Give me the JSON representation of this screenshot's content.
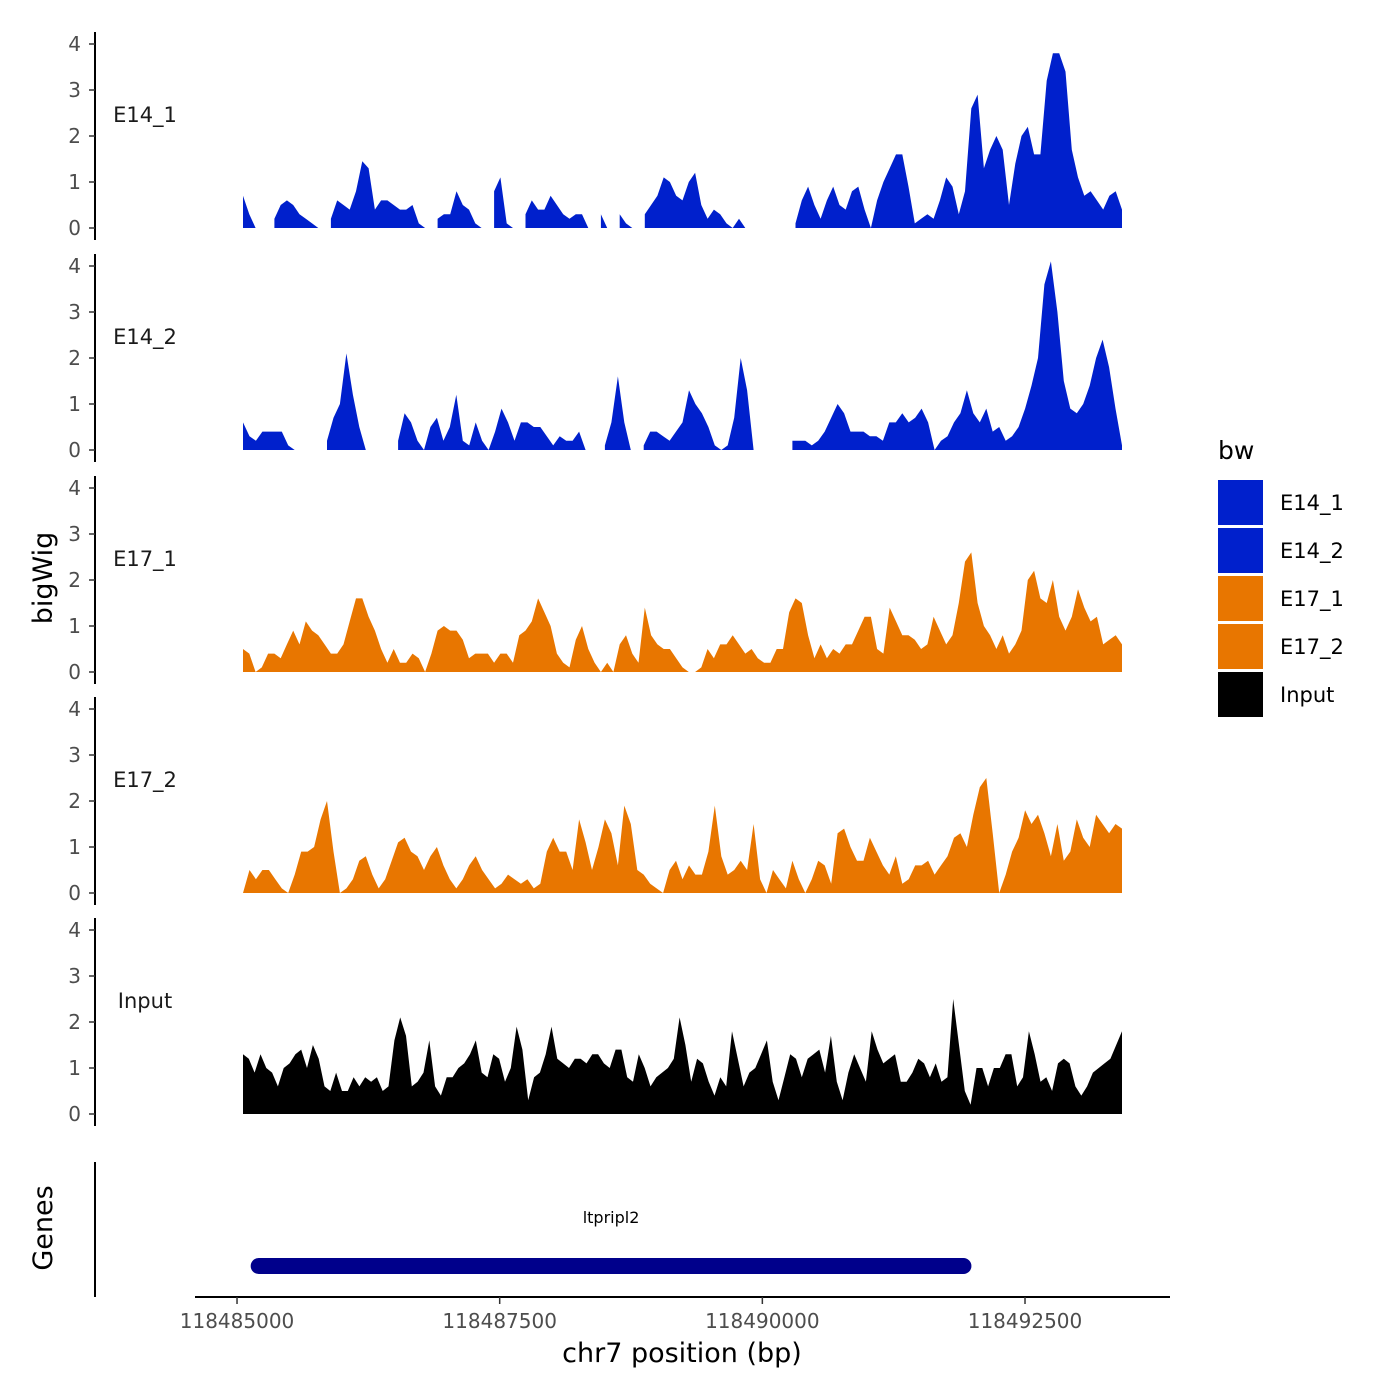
{
  "chart_data": {
    "type": "area",
    "y_axis_title": "bigWig",
    "genes_axis_title": "Genes",
    "xlabel": "chr7 position (bp)",
    "xlim": [
      118484600,
      118493880
    ],
    "x_ticks": [
      118485000,
      118487500,
      118490000,
      118492500
    ],
    "x_tick_labels": [
      "118485000",
      "118487500",
      "118490000",
      "118492500"
    ],
    "ylim": [
      0,
      4.3
    ],
    "y_ticks": [
      0,
      1,
      2,
      3,
      4
    ],
    "y_tick_labels": [
      "0",
      "1",
      "2",
      "3",
      "4"
    ],
    "data_range": [
      118485120,
      118493900
    ],
    "legend": {
      "title": "bw",
      "entries": [
        {
          "label": "E14_1",
          "color": "#0020CC"
        },
        {
          "label": "E14_2",
          "color": "#0020CC"
        },
        {
          "label": "E17_1",
          "color": "#E87600"
        },
        {
          "label": "E17_2",
          "color": "#E87600"
        },
        {
          "label": "Input",
          "color": "#000000"
        }
      ]
    },
    "series": [
      {
        "name": "E14_1",
        "color": "#0020CC",
        "values": [
          0.7,
          0.3,
          0.0,
          null,
          null,
          0.2,
          0.5,
          0.6,
          0.5,
          0.3,
          0.2,
          0.1,
          0.0,
          null,
          0.2,
          0.6,
          0.5,
          0.4,
          0.8,
          1.45,
          1.3,
          0.4,
          0.6,
          0.6,
          0.5,
          0.4,
          0.4,
          0.5,
          0.1,
          0.0,
          null,
          0.2,
          0.3,
          0.3,
          0.8,
          0.5,
          0.4,
          0.1,
          0.0,
          null,
          0.8,
          1.1,
          0.1,
          0.0,
          null,
          0.3,
          0.6,
          0.4,
          0.4,
          0.7,
          0.5,
          0.3,
          0.2,
          0.3,
          0.3,
          0.0,
          null,
          0.3,
          0.0,
          null,
          0.3,
          0.1,
          0.0,
          null,
          0.3,
          0.5,
          0.7,
          1.1,
          1.0,
          0.7,
          0.6,
          1.0,
          1.2,
          0.5,
          0.2,
          0.4,
          0.3,
          0.1,
          0.0,
          0.2,
          0.0,
          null,
          null,
          null,
          null,
          null,
          null,
          null,
          0.1,
          0.6,
          0.9,
          0.5,
          0.2,
          0.6,
          0.9,
          0.5,
          0.4,
          0.8,
          0.9,
          0.4,
          0.0,
          0.6,
          1.0,
          1.3,
          1.6,
          1.6,
          0.9,
          0.1,
          0.2,
          0.3,
          0.2,
          0.6,
          1.1,
          0.9,
          0.3,
          0.8,
          2.6,
          2.9,
          1.3,
          1.7,
          2.0,
          1.7,
          0.5,
          1.4,
          2.0,
          2.2,
          1.6,
          1.6,
          3.2,
          3.8,
          3.8,
          3.4,
          1.7,
          1.1,
          0.7,
          0.8,
          0.6,
          0.4,
          0.7,
          0.8,
          0.4
        ]
      },
      {
        "name": "E14_2",
        "color": "#0020CC",
        "values": [
          0.6,
          0.3,
          0.2,
          0.4,
          0.4,
          0.4,
          0.4,
          0.1,
          0.0,
          null,
          null,
          null,
          null,
          0.2,
          0.7,
          1.0,
          2.1,
          1.2,
          0.5,
          0.0,
          null,
          null,
          null,
          null,
          0.2,
          0.8,
          0.6,
          0.2,
          0.0,
          0.5,
          0.7,
          0.2,
          0.5,
          1.2,
          0.2,
          0.1,
          0.6,
          0.2,
          0.0,
          0.4,
          0.9,
          0.6,
          0.2,
          0.6,
          0.6,
          0.5,
          0.5,
          0.3,
          0.1,
          0.3,
          0.2,
          0.2,
          0.4,
          0.0,
          null,
          null,
          0.1,
          0.6,
          1.6,
          0.6,
          0.0,
          null,
          0.1,
          0.4,
          0.4,
          0.3,
          0.2,
          0.4,
          0.6,
          1.3,
          1.0,
          0.8,
          0.5,
          0.1,
          0.0,
          0.1,
          0.7,
          2.0,
          1.3,
          0.0,
          null,
          null,
          null,
          null,
          null,
          0.2,
          0.2,
          0.2,
          0.1,
          0.2,
          0.4,
          0.7,
          1.0,
          0.8,
          0.4,
          0.4,
          0.4,
          0.3,
          0.3,
          0.2,
          0.6,
          0.6,
          0.8,
          0.6,
          0.7,
          0.9,
          0.6,
          0.0,
          0.2,
          0.3,
          0.6,
          0.8,
          1.3,
          0.8,
          0.6,
          0.9,
          0.4,
          0.5,
          0.2,
          0.3,
          0.5,
          0.9,
          1.4,
          2.0,
          3.6,
          4.1,
          3.0,
          1.5,
          0.9,
          0.8,
          1.0,
          1.4,
          2.0,
          2.4,
          1.8,
          0.9,
          0.1
        ]
      },
      {
        "name": "E17_1",
        "color": "#E87600",
        "values": [
          0.5,
          0.4,
          0.0,
          0.1,
          0.4,
          0.4,
          0.3,
          0.6,
          0.9,
          0.6,
          1.1,
          0.9,
          0.8,
          0.6,
          0.4,
          0.4,
          0.6,
          1.1,
          1.6,
          1.6,
          1.2,
          0.9,
          0.5,
          0.2,
          0.5,
          0.2,
          0.2,
          0.4,
          0.3,
          0.0,
          0.4,
          0.9,
          1.0,
          0.9,
          0.9,
          0.7,
          0.3,
          0.4,
          0.4,
          0.4,
          0.2,
          0.4,
          0.4,
          0.2,
          0.8,
          0.9,
          1.1,
          1.6,
          1.3,
          1.0,
          0.4,
          0.2,
          0.1,
          0.7,
          1.0,
          0.5,
          0.2,
          0.0,
          0.2,
          0.0,
          0.6,
          0.8,
          0.4,
          0.2,
          1.4,
          0.8,
          0.6,
          0.5,
          0.5,
          0.3,
          0.1,
          0.0,
          0.0,
          0.1,
          0.5,
          0.3,
          0.6,
          0.6,
          0.8,
          0.6,
          0.4,
          0.5,
          0.3,
          0.2,
          0.2,
          0.5,
          0.5,
          1.3,
          1.6,
          1.5,
          0.8,
          0.3,
          0.6,
          0.3,
          0.5,
          0.4,
          0.6,
          0.6,
          0.9,
          1.2,
          1.2,
          0.5,
          0.4,
          1.4,
          1.1,
          0.8,
          0.8,
          0.7,
          0.5,
          0.6,
          1.2,
          0.9,
          0.6,
          0.8,
          1.5,
          2.4,
          2.6,
          1.5,
          1.0,
          0.8,
          0.5,
          0.8,
          0.4,
          0.6,
          0.9,
          2.0,
          2.2,
          1.6,
          1.5,
          2.0,
          1.2,
          0.9,
          1.2,
          1.8,
          1.4,
          1.1,
          1.2,
          0.6,
          0.7,
          0.8,
          0.6
        ]
      },
      {
        "name": "E17_2",
        "color": "#E87600",
        "values": [
          0.0,
          0.5,
          0.3,
          0.5,
          0.5,
          0.3,
          0.1,
          0.0,
          0.4,
          0.9,
          0.9,
          1.0,
          1.6,
          2.0,
          0.9,
          0.0,
          0.1,
          0.3,
          0.7,
          0.8,
          0.4,
          0.1,
          0.3,
          0.7,
          1.1,
          1.2,
          0.9,
          0.8,
          0.5,
          0.8,
          1.0,
          0.6,
          0.3,
          0.1,
          0.3,
          0.6,
          0.8,
          0.5,
          0.3,
          0.1,
          0.2,
          0.4,
          0.3,
          0.2,
          0.3,
          0.1,
          0.2,
          0.9,
          1.2,
          0.9,
          0.9,
          0.5,
          1.6,
          1.1,
          0.5,
          1.0,
          1.6,
          1.3,
          0.6,
          1.9,
          1.5,
          0.5,
          0.4,
          0.2,
          0.1,
          0.0,
          0.5,
          0.7,
          0.3,
          0.6,
          0.4,
          0.4,
          0.9,
          1.9,
          0.8,
          0.4,
          0.5,
          0.7,
          0.5,
          1.5,
          0.3,
          0.0,
          0.5,
          0.3,
          0.1,
          0.7,
          0.3,
          0.0,
          0.3,
          0.7,
          0.6,
          0.2,
          1.3,
          1.4,
          1.0,
          0.7,
          0.7,
          1.2,
          0.9,
          0.6,
          0.4,
          0.8,
          0.2,
          0.3,
          0.6,
          0.6,
          0.7,
          0.4,
          0.6,
          0.8,
          1.2,
          1.3,
          1.0,
          1.7,
          2.3,
          2.5,
          1.3,
          0.0,
          0.4,
          0.9,
          1.2,
          1.8,
          1.5,
          1.7,
          1.3,
          0.8,
          1.5,
          0.7,
          0.9,
          1.6,
          1.2,
          1.0,
          1.7,
          1.5,
          1.3,
          1.5,
          1.4
        ]
      },
      {
        "name": "Input",
        "color": "#000000",
        "values": [
          1.3,
          1.2,
          0.9,
          1.3,
          1.0,
          0.9,
          0.6,
          1.0,
          1.1,
          1.3,
          1.4,
          1.0,
          1.5,
          1.2,
          0.6,
          0.5,
          0.9,
          0.5,
          0.5,
          0.8,
          0.6,
          0.8,
          0.7,
          0.8,
          0.5,
          0.6,
          1.6,
          2.1,
          1.7,
          0.6,
          0.7,
          0.9,
          1.6,
          0.6,
          0.4,
          0.8,
          0.8,
          1.0,
          1.1,
          1.3,
          1.6,
          0.9,
          0.8,
          1.3,
          1.2,
          0.7,
          1.0,
          1.9,
          1.4,
          0.3,
          0.8,
          0.9,
          1.3,
          1.9,
          1.2,
          1.1,
          1.0,
          1.2,
          1.2,
          1.1,
          1.3,
          1.3,
          1.1,
          1.0,
          1.4,
          1.4,
          0.8,
          0.7,
          1.3,
          1.0,
          0.6,
          0.8,
          0.9,
          1.0,
          1.2,
          2.1,
          1.5,
          0.7,
          1.2,
          1.1,
          0.7,
          0.4,
          0.8,
          0.6,
          1.8,
          1.2,
          0.6,
          0.9,
          1.0,
          1.3,
          1.6,
          0.7,
          0.3,
          0.8,
          1.3,
          1.2,
          0.8,
          1.2,
          1.3,
          1.4,
          0.9,
          1.7,
          0.7,
          0.3,
          0.9,
          1.3,
          1.0,
          0.7,
          1.8,
          1.4,
          1.1,
          1.2,
          1.3,
          0.7,
          0.7,
          0.9,
          1.2,
          1.1,
          0.8,
          1.1,
          0.7,
          0.8,
          2.5,
          1.5,
          0.5,
          0.2,
          1.0,
          1.0,
          0.6,
          1.0,
          1.0,
          1.3,
          1.3,
          0.6,
          0.8,
          1.8,
          1.3,
          0.7,
          0.8,
          0.5,
          1.1,
          1.2,
          1.1,
          0.6,
          0.4,
          0.6,
          0.9,
          1.0,
          1.1,
          1.2,
          1.5,
          1.8
        ]
      }
    ],
    "gene_track": {
      "gene": "ltpripl2",
      "start": 118485130,
      "end": 118491990,
      "color": "#00008B"
    }
  }
}
